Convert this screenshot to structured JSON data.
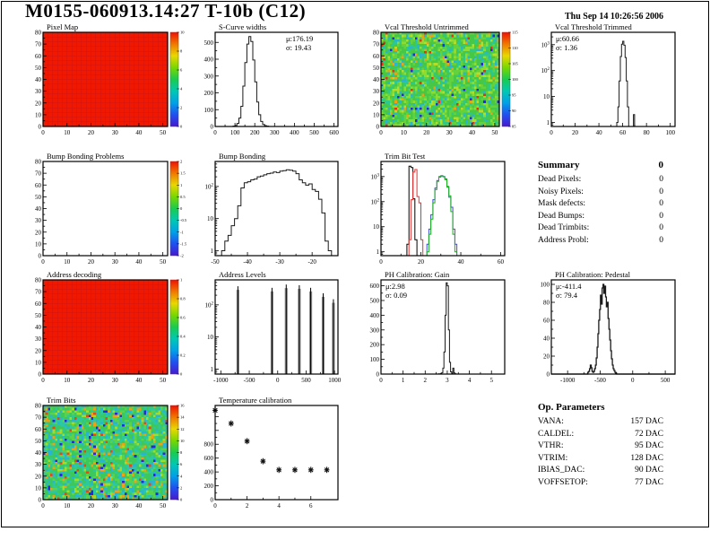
{
  "page": {
    "title": "M0155-060913.14:27 T-10b (C12)",
    "timestamp": "Thu Sep 14 10:26:56 2006"
  },
  "summary": {
    "title": "Summary",
    "total": "0",
    "rows": [
      {
        "label": "Dead Pixels:",
        "value": "0"
      },
      {
        "label": "Noisy Pixels:",
        "value": "0"
      },
      {
        "label": "Mask defects:",
        "value": "0"
      },
      {
        "label": "Dead Bumps:",
        "value": "0"
      },
      {
        "label": "Dead Trimbits:",
        "value": "0"
      },
      {
        "label": "Address Probl:",
        "value": "0"
      }
    ]
  },
  "op_parameters": {
    "title": "Op. Parameters",
    "rows": [
      {
        "label": "VANA:",
        "value": "157 DAC"
      },
      {
        "label": "CALDEL:",
        "value": "72 DAC"
      },
      {
        "label": "VTHR:",
        "value": "95 DAC"
      },
      {
        "label": "VTRIM:",
        "value": "128 DAC"
      },
      {
        "label": "IBIAS_DAC:",
        "value": "90 DAC"
      },
      {
        "label": "VOFFSETOP:",
        "value": "77 DAC"
      }
    ]
  },
  "colors": {
    "accent_red": "#f01400",
    "trim_red": "#e83030",
    "trim_blue": "#4048d8",
    "trim_green": "#18b018",
    "rainbow": [
      "#f01000",
      "#f07800",
      "#e8d800",
      "#78d800",
      "#18cc50",
      "#00c8b4",
      "#00a0e8",
      "#2050f0",
      "#4818d0"
    ]
  },
  "chart_data": [
    {
      "id": "pixel_map",
      "type": "heatmap",
      "title": "Pixel Map",
      "style": "solid",
      "fill_color": "#f01800",
      "grid_color": "#d41212",
      "xlim": [
        0,
        52
      ],
      "ylim": [
        0,
        80
      ],
      "xticks": [
        [
          0,
          "0"
        ],
        [
          10,
          "10"
        ],
        [
          20,
          "20"
        ],
        [
          30,
          "30"
        ],
        [
          40,
          "40"
        ],
        [
          50,
          "50"
        ]
      ],
      "yticks": [
        [
          0,
          "0"
        ],
        [
          10,
          "10"
        ],
        [
          20,
          "20"
        ],
        [
          30,
          "30"
        ],
        [
          40,
          "40"
        ],
        [
          50,
          "50"
        ],
        [
          60,
          "60"
        ],
        [
          70,
          "70"
        ],
        [
          80,
          "80"
        ]
      ],
      "colorbar": {
        "ticks": [
          "10",
          "8",
          "6",
          "4",
          "2",
          "0"
        ]
      }
    },
    {
      "id": "scurve",
      "type": "histogram",
      "title": "S-Curve widths",
      "stats": {
        "mu": "176.19",
        "sigma": "19.43"
      },
      "stats_pos": "right",
      "xlim": [
        0,
        620
      ],
      "ylim": [
        0,
        560
      ],
      "xticks": [
        [
          0,
          "0"
        ],
        [
          100,
          "100"
        ],
        [
          200,
          "200"
        ],
        [
          300,
          "300"
        ],
        [
          400,
          "400"
        ],
        [
          500,
          "500"
        ],
        [
          600,
          "600"
        ]
      ],
      "yticks": [
        [
          0,
          "0"
        ],
        [
          100,
          "100"
        ],
        [
          200,
          "200"
        ],
        [
          300,
          "300"
        ],
        [
          400,
          "400"
        ],
        [
          500,
          "500"
        ]
      ],
      "bins": {
        "start": 90,
        "width": 10
      },
      "values": [
        2,
        6,
        18,
        50,
        120,
        240,
        380,
        490,
        535,
        505,
        395,
        265,
        145,
        70,
        30,
        12,
        5,
        2
      ]
    },
    {
      "id": "vcal_untrimmed",
      "type": "heatmap",
      "title": "Vcal Threshold Untrimmed",
      "style": "noise",
      "seed": 7,
      "palette": [
        [
          "#46c846",
          0.34
        ],
        [
          "#64d23c",
          0.2
        ],
        [
          "#8cdc32",
          0.12
        ],
        [
          "#2cc88c",
          0.14
        ],
        [
          "#28b4d2",
          0.08
        ],
        [
          "#b4dc28",
          0.06
        ],
        [
          "#f0a014",
          0.03
        ],
        [
          "#e83214",
          0.015
        ],
        [
          "#2828e0",
          0.015
        ]
      ],
      "xlim": [
        0,
        52
      ],
      "ylim": [
        0,
        80
      ],
      "xticks": [
        [
          0,
          "0"
        ],
        [
          10,
          "10"
        ],
        [
          20,
          "20"
        ],
        [
          30,
          "30"
        ],
        [
          40,
          "40"
        ],
        [
          50,
          "50"
        ]
      ],
      "yticks": [
        [
          0,
          "0"
        ],
        [
          10,
          "10"
        ],
        [
          20,
          "20"
        ],
        [
          30,
          "30"
        ],
        [
          40,
          "40"
        ],
        [
          50,
          "50"
        ],
        [
          60,
          "60"
        ],
        [
          70,
          "70"
        ],
        [
          80,
          "80"
        ]
      ],
      "colorbar": {
        "ticks": [
          "115",
          "110",
          "105",
          "100",
          "95",
          "90",
          "85"
        ]
      }
    },
    {
      "id": "vcal_trimmed",
      "type": "histogram",
      "title": "Vcal Threshold Trimmed",
      "stats": {
        "mu": "60.66",
        "sigma": "1.36"
      },
      "stats_pos": "left",
      "rpad": 20,
      "xlim": [
        0,
        104
      ],
      "ylog": true,
      "ymin": 0.7,
      "ymax": 3000,
      "xticks": [
        [
          0,
          "0"
        ],
        [
          20,
          "20"
        ],
        [
          40,
          "40"
        ],
        [
          60,
          "60"
        ],
        [
          80,
          "80"
        ],
        [
          100,
          "100"
        ]
      ],
      "yticks": [
        [
          1,
          "1"
        ],
        [
          10,
          "10"
        ],
        [
          100,
          "10^2"
        ],
        [
          1000,
          "10^3"
        ]
      ],
      "bins": {
        "start": 55,
        "width": 1
      },
      "values": [
        1,
        4,
        40,
        350,
        1050,
        1350,
        950,
        320,
        40,
        4,
        0,
        0,
        0,
        0,
        2
      ]
    },
    {
      "id": "bump_problems",
      "type": "heatmap",
      "title": "Bump Bonding Problems",
      "style": "empty",
      "xlim": [
        0,
        52
      ],
      "ylim": [
        0,
        80
      ],
      "xticks": [
        [
          0,
          "0"
        ],
        [
          10,
          "10"
        ],
        [
          20,
          "20"
        ],
        [
          30,
          "30"
        ],
        [
          40,
          "40"
        ],
        [
          50,
          "50"
        ]
      ],
      "yticks": [
        [
          0,
          "0"
        ],
        [
          10,
          "10"
        ],
        [
          20,
          "20"
        ],
        [
          30,
          "30"
        ],
        [
          40,
          "40"
        ],
        [
          50,
          "50"
        ],
        [
          60,
          "60"
        ],
        [
          70,
          "70"
        ],
        [
          80,
          "80"
        ]
      ],
      "colorbar": {
        "ticks": [
          "2",
          "1.5",
          "1",
          "0.5",
          "0",
          "-0.5",
          "-1",
          "-1.5",
          "-2"
        ]
      }
    },
    {
      "id": "bump_bonding",
      "type": "histogram",
      "title": "Bump Bonding",
      "xlim": [
        -50,
        -12
      ],
      "ylog": true,
      "ymin": 0.7,
      "ymax": 600,
      "xticks": [
        [
          -50,
          "-50"
        ],
        [
          -40,
          "-40"
        ],
        [
          -30,
          "-30"
        ],
        [
          -20,
          "-20"
        ]
      ],
      "yticks": [
        [
          1,
          "1"
        ],
        [
          10,
          "10"
        ],
        [
          100,
          "10^2"
        ]
      ],
      "bins": {
        "start": -48,
        "width": 1
      },
      "values": [
        1,
        2,
        3,
        6,
        10,
        25,
        90,
        130,
        140,
        160,
        170,
        200,
        210,
        230,
        250,
        260,
        280,
        270,
        300,
        310,
        330,
        320,
        300,
        250,
        160,
        130,
        110,
        120,
        80,
        70,
        40,
        15,
        2,
        1
      ]
    },
    {
      "id": "trim_bit_test",
      "type": "histogram_multi",
      "title": "Trim Bit Test",
      "rpad": 20,
      "xlim": [
        0,
        62
      ],
      "ylog": true,
      "ymin": 0.7,
      "ymax": 4000,
      "xticks": [
        [
          0,
          "0"
        ],
        [
          20,
          "20"
        ],
        [
          40,
          "40"
        ],
        [
          60,
          "60"
        ]
      ],
      "yticks": [
        [
          1,
          "1"
        ],
        [
          10,
          "10"
        ],
        [
          100,
          "10^2"
        ],
        [
          1000,
          "10^3"
        ]
      ],
      "series": [
        {
          "name": "trim-bit-black",
          "color": "#000000",
          "start": 13,
          "values": [
            2,
            2600,
            2300,
            130,
            3
          ]
        },
        {
          "name": "trim-bit-blue",
          "color": "#4048d8",
          "start": 23,
          "values": [
            2,
            8,
            30,
            120,
            350,
            700,
            950,
            1050,
            1000,
            800,
            400,
            150,
            60,
            8,
            2
          ]
        },
        {
          "name": "trim-bit-green",
          "color": "#18b018",
          "start": 23,
          "values": [
            1,
            5,
            20,
            90,
            300,
            650,
            1000,
            1100,
            980,
            750,
            380,
            170,
            40,
            5,
            1
          ]
        },
        {
          "name": "trim-bit-red",
          "color": "#e83030",
          "start": 13,
          "values": [
            0,
            3,
            120,
            1500,
            1900,
            160,
            90,
            3
          ],
          "span": [
            13,
            36
          ]
        }
      ]
    },
    {
      "id": "address_decoding",
      "type": "heatmap",
      "title": "Address decoding",
      "style": "solid",
      "fill_color": "#f01800",
      "grid_color": "#d41212",
      "xlim": [
        0,
        52
      ],
      "ylim": [
        0,
        80
      ],
      "xticks": [
        [
          0,
          "0"
        ],
        [
          10,
          "10"
        ],
        [
          20,
          "20"
        ],
        [
          30,
          "30"
        ],
        [
          40,
          "40"
        ],
        [
          50,
          "50"
        ]
      ],
      "yticks": [
        [
          0,
          "0"
        ],
        [
          10,
          "10"
        ],
        [
          20,
          "20"
        ],
        [
          30,
          "30"
        ],
        [
          40,
          "40"
        ],
        [
          50,
          "50"
        ],
        [
          60,
          "60"
        ],
        [
          70,
          "70"
        ],
        [
          80,
          "80"
        ]
      ],
      "colorbar": {
        "ticks": [
          "1",
          "0.8",
          "0.6",
          "0.4",
          "0.2",
          "0"
        ]
      }
    },
    {
      "id": "address_levels",
      "type": "spikes",
      "title": "Address Levels",
      "xlim": [
        -1100,
        1060
      ],
      "ylog": true,
      "ymin": 0.7,
      "ymax": 600,
      "xticks": [
        [
          -1000,
          "-1000"
        ],
        [
          -500,
          "-500"
        ],
        [
          0,
          "0"
        ],
        [
          500,
          "500"
        ],
        [
          1000,
          "1000"
        ]
      ],
      "yticks": [
        [
          1,
          "1"
        ],
        [
          10,
          "10"
        ],
        [
          100,
          "10^2"
        ]
      ],
      "spikes": [
        [
          -700,
          380
        ],
        [
          -100,
          340
        ],
        [
          150,
          430
        ],
        [
          380,
          410
        ],
        [
          580,
          340
        ],
        [
          800,
          230
        ],
        [
          980,
          150
        ]
      ]
    },
    {
      "id": "ph_gain",
      "type": "histogram",
      "title": "PH Calibration: Gain",
      "stats": {
        "mu": "2.98",
        "sigma": "0.09"
      },
      "stats_pos": "left",
      "rpad": 20,
      "xlim": [
        0,
        5.6
      ],
      "ylim": [
        0,
        640
      ],
      "xticks": [
        [
          0,
          "0"
        ],
        [
          1,
          "1"
        ],
        [
          2,
          "2"
        ],
        [
          3,
          "3"
        ],
        [
          4,
          "4"
        ],
        [
          5,
          "5"
        ]
      ],
      "yticks": [
        [
          0,
          "0"
        ],
        [
          100,
          "100"
        ],
        [
          200,
          "200"
        ],
        [
          300,
          "300"
        ],
        [
          400,
          "400"
        ],
        [
          500,
          "500"
        ],
        [
          600,
          "600"
        ]
      ],
      "bins": {
        "start": 2.6,
        "width": 0.05
      },
      "values": [
        1,
        2,
        4,
        10,
        40,
        150,
        400,
        620,
        600,
        300,
        80,
        15,
        5,
        40,
        8,
        2
      ]
    },
    {
      "id": "ph_pedestal",
      "type": "histogram",
      "title": "PH Calibration: Pedestal",
      "stats": {
        "mu": "-411.4",
        "sigma": "79.4"
      },
      "stats_pos": "left",
      "rpad": 20,
      "jagged": true,
      "xlim": [
        -1250,
        650
      ],
      "ylim": [
        0,
        105
      ],
      "xticks": [
        [
          -1000,
          "-1000"
        ],
        [
          -500,
          "-500"
        ],
        [
          0,
          "0"
        ],
        [
          500,
          "500"
        ]
      ],
      "yticks": [
        [
          0,
          "0"
        ],
        [
          20,
          "20"
        ],
        [
          40,
          "40"
        ],
        [
          60,
          "60"
        ],
        [
          80,
          "80"
        ],
        [
          100,
          "100"
        ]
      ],
      "bins": {
        "start": -690,
        "width": 13
      },
      "values": [
        2,
        3,
        6,
        10,
        7,
        3,
        2,
        3,
        6,
        10,
        18,
        30,
        45,
        60,
        72,
        88,
        78,
        96,
        100,
        90,
        98,
        86,
        75,
        80,
        62,
        50,
        38,
        26,
        17,
        10,
        6,
        4,
        2,
        1
      ]
    },
    {
      "id": "trim_bits",
      "type": "heatmap",
      "title": "Trim Bits",
      "style": "noise",
      "seed": 13,
      "palette": [
        [
          "#3cc85a",
          0.3
        ],
        [
          "#2cc8a0",
          0.22
        ],
        [
          "#28b4d2",
          0.12
        ],
        [
          "#5ad24b",
          0.16
        ],
        [
          "#a0dc28",
          0.08
        ],
        [
          "#f0a014",
          0.06
        ],
        [
          "#e84814",
          0.02
        ],
        [
          "#2828e0",
          0.04
        ]
      ],
      "xlim": [
        0,
        52
      ],
      "ylim": [
        0,
        80
      ],
      "xticks": [
        [
          0,
          "0"
        ],
        [
          10,
          "10"
        ],
        [
          20,
          "20"
        ],
        [
          30,
          "30"
        ],
        [
          40,
          "40"
        ],
        [
          50,
          "50"
        ]
      ],
      "yticks": [
        [
          0,
          "0"
        ],
        [
          10,
          "10"
        ],
        [
          20,
          "20"
        ],
        [
          30,
          "30"
        ],
        [
          40,
          "40"
        ],
        [
          50,
          "50"
        ],
        [
          60,
          "60"
        ],
        [
          70,
          "70"
        ],
        [
          80,
          "80"
        ]
      ],
      "colorbar": {
        "ticks": [
          "16",
          "14",
          "12",
          "10",
          "8",
          "6",
          "4",
          "2",
          "0"
        ]
      }
    },
    {
      "id": "temperature",
      "type": "scatter",
      "title": "Temperature calibration",
      "xlim": [
        0,
        7.7
      ],
      "ylim": [
        0,
        1360
      ],
      "xticks": [
        [
          0,
          "0"
        ],
        [
          2,
          "2"
        ],
        [
          4,
          "4"
        ],
        [
          6,
          "6"
        ]
      ],
      "yticks": [
        [
          0,
          "0"
        ],
        [
          200,
          "200"
        ],
        [
          400,
          "400"
        ],
        [
          600,
          "600"
        ],
        [
          800,
          "800"
        ],
        [
          1000,
          ""
        ],
        [
          1200,
          ""
        ]
      ],
      "points": [
        [
          0,
          1290
        ],
        [
          1,
          1100
        ],
        [
          2,
          845
        ],
        [
          3,
          555
        ],
        [
          4,
          430
        ],
        [
          5,
          430
        ],
        [
          6,
          430
        ],
        [
          7,
          430
        ]
      ]
    }
  ]
}
